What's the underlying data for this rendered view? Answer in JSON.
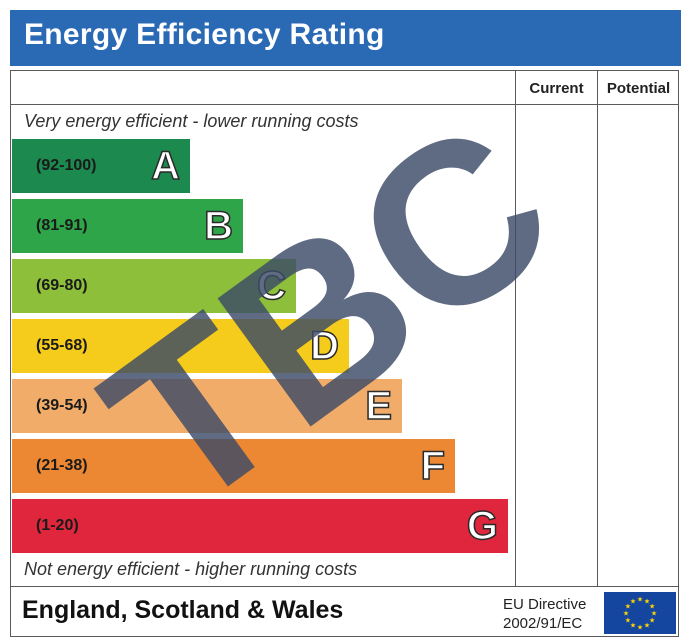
{
  "header": {
    "title": "Energy Efficiency Rating"
  },
  "columns": {
    "current": "Current",
    "potential": "Potential"
  },
  "captions": {
    "top": "Very energy efficient - lower running costs",
    "bottom": "Not energy efficient - higher running costs"
  },
  "footer": {
    "region": "England, Scotland & Wales",
    "directive_line1": "EU Directive",
    "directive_line2": "2002/91/EC"
  },
  "watermark": "TBC",
  "colors": {
    "header": "#2a6ab5",
    "eu_flag": "#1446a0",
    "eu_stars": "#ffd700",
    "watermark": "#3c4a66"
  },
  "chart_data": {
    "type": "bar",
    "title": "Energy Efficiency Rating",
    "orientation": "horizontal",
    "categories": [
      "A",
      "B",
      "C",
      "D",
      "E",
      "F",
      "G"
    ],
    "ranges": [
      "(92-100)",
      "(81-91)",
      "(69-80)",
      "(55-68)",
      "(39-54)",
      "(21-38)",
      "(1-20)"
    ],
    "values": [
      100,
      91,
      80,
      68,
      54,
      38,
      20
    ],
    "colors": [
      "#1c8a4f",
      "#2ea548",
      "#8dbf3b",
      "#f5cc1b",
      "#f2ac6a",
      "#ec8833",
      "#e0263c"
    ],
    "current": null,
    "potential": null
  }
}
